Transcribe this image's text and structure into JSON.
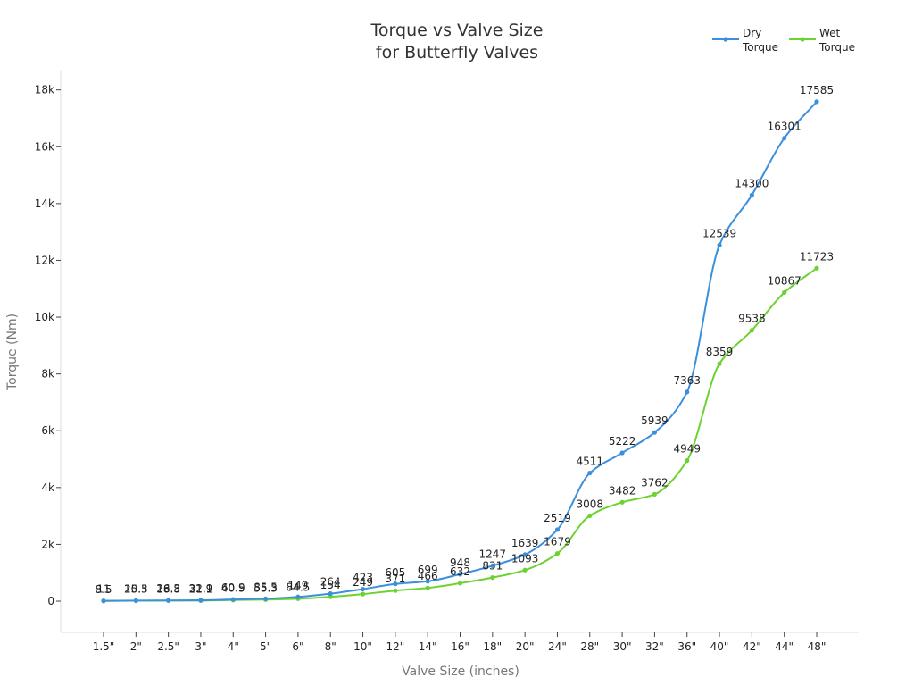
{
  "chart_data": {
    "type": "line",
    "title_lines": [
      "Torque vs Valve Size",
      "for Butterfly Valves"
    ],
    "xlabel": "Valve Size (inches)",
    "ylabel": "Torque (Nm)",
    "categories": [
      "1.5\"",
      "2\"",
      "2.5\"",
      "3\"",
      "4\"",
      "5\"",
      "6\"",
      "8\"",
      "10\"",
      "12\"",
      "14\"",
      "16\"",
      "18\"",
      "20\"",
      "24\"",
      "28\"",
      "30\"",
      "32\"",
      "36\"",
      "40\"",
      "42\"",
      "44\"",
      "48\""
    ],
    "ylim": [
      -1100,
      18650
    ],
    "yticks": [
      0,
      2000,
      4000,
      6000,
      8000,
      10000,
      12000,
      14000,
      16000,
      18000
    ],
    "ytick_labels": [
      "0",
      "2k",
      "4k",
      "6k",
      "8k",
      "10k",
      "12k",
      "14k",
      "16k",
      "18k"
    ],
    "grid": false,
    "legend_position": "top-right",
    "series": [
      {
        "name": "Dry Torque",
        "legend_lines": [
          "Dry",
          "Torque"
        ],
        "color": "#3b8fdc",
        "values": [
          11,
          20.5,
          26.3,
          32.9,
          60.9,
          85.5,
          149,
          264,
          423,
          605,
          699,
          948,
          1247,
          1639,
          2519,
          4511,
          5222,
          5939,
          7363,
          12539,
          14300,
          16301,
          17585
        ]
      },
      {
        "name": "Wet Torque",
        "legend_lines": [
          "Wet",
          "Torque"
        ],
        "color": "#6cd232",
        "values": [
          8.5,
          15.3,
          18.8,
          21.1,
          40.5,
          55.3,
          84.5,
          154,
          249,
          371,
          466,
          632,
          831,
          1093,
          1679,
          3008,
          3482,
          3762,
          4949,
          8359,
          9538,
          10867,
          11723
        ]
      }
    ]
  }
}
